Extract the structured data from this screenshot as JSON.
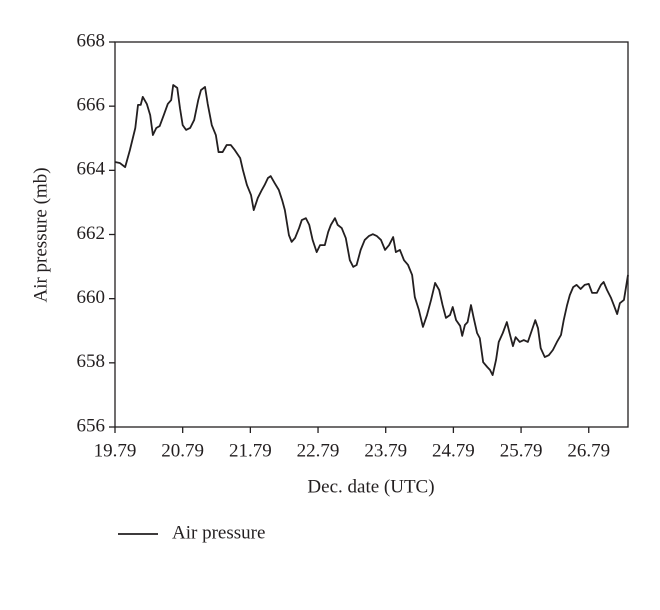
{
  "chart_data": {
    "type": "line",
    "x_label": "Dec. date (UTC)",
    "y_label": "Air pressure (mb)",
    "xlim": [
      19.79,
      27.37
    ],
    "ylim": [
      656,
      668
    ],
    "xticks": [
      19.79,
      20.79,
      21.79,
      22.79,
      23.79,
      24.79,
      25.79,
      26.79
    ],
    "yticks": [
      656,
      658,
      660,
      662,
      664,
      666,
      668
    ],
    "legend": "bottom-left",
    "x": [
      19.79,
      19.86,
      19.94,
      20.01,
      20.09,
      20.13,
      20.17,
      20.2,
      20.26,
      20.31,
      20.35,
      20.4,
      20.45,
      20.51,
      20.57,
      20.62,
      20.65,
      20.71,
      20.75,
      20.79,
      20.84,
      20.9,
      20.96,
      21.02,
      21.06,
      21.12,
      21.16,
      21.22,
      21.28,
      21.32,
      21.38,
      21.44,
      21.5,
      21.56,
      21.64,
      21.68,
      21.74,
      21.8,
      21.84,
      21.9,
      21.96,
      22.0,
      22.05,
      22.09,
      22.15,
      22.21,
      22.26,
      22.3,
      22.36,
      22.4,
      22.45,
      22.51,
      22.55,
      22.61,
      22.66,
      22.71,
      22.77,
      22.82,
      22.89,
      22.94,
      22.98,
      23.04,
      23.08,
      23.14,
      23.2,
      23.26,
      23.31,
      23.36,
      23.42,
      23.48,
      23.54,
      23.6,
      23.66,
      23.72,
      23.78,
      23.84,
      23.9,
      23.94,
      24.0,
      24.06,
      24.12,
      24.18,
      24.22,
      24.28,
      24.34,
      24.4,
      24.46,
      24.52,
      24.58,
      24.63,
      24.68,
      24.74,
      24.78,
      24.83,
      24.89,
      24.92,
      24.96,
      25.0,
      25.05,
      25.09,
      25.14,
      25.18,
      25.23,
      25.29,
      25.33,
      25.37,
      25.42,
      25.46,
      25.52,
      25.58,
      25.62,
      25.67,
      25.71,
      25.77,
      25.83,
      25.89,
      25.95,
      26.0,
      26.04,
      26.08,
      26.14,
      26.2,
      26.26,
      26.32,
      26.38,
      26.42,
      26.47,
      26.51,
      26.56,
      26.61,
      26.67,
      26.73,
      26.79,
      26.84,
      26.91,
      26.97,
      27.01,
      27.06,
      27.12,
      27.16,
      27.21,
      27.25,
      27.31,
      27.37
    ],
    "series": [
      {
        "name": "Air pressure",
        "color": "#231f20",
        "values": [
          664.26,
          664.23,
          664.1,
          664.63,
          665.32,
          666.04,
          666.04,
          666.29,
          666.07,
          665.72,
          665.1,
          665.32,
          665.38,
          665.72,
          666.07,
          666.19,
          666.66,
          666.57,
          665.94,
          665.41,
          665.26,
          665.32,
          665.57,
          666.19,
          666.5,
          666.6,
          666.07,
          665.41,
          665.1,
          664.57,
          664.57,
          664.79,
          664.79,
          664.63,
          664.38,
          664.01,
          663.54,
          663.23,
          662.76,
          663.14,
          663.39,
          663.54,
          663.76,
          663.82,
          663.6,
          663.39,
          663.07,
          662.76,
          661.98,
          661.77,
          661.89,
          662.2,
          662.45,
          662.51,
          662.3,
          661.83,
          661.45,
          661.67,
          661.67,
          662.08,
          662.3,
          662.51,
          662.3,
          662.2,
          661.89,
          661.2,
          660.99,
          661.05,
          661.52,
          661.83,
          661.95,
          662.01,
          661.95,
          661.83,
          661.52,
          661.67,
          661.92,
          661.45,
          661.52,
          661.2,
          661.05,
          660.74,
          660.05,
          659.65,
          659.12,
          659.49,
          659.96,
          660.49,
          660.27,
          659.8,
          659.4,
          659.49,
          659.74,
          659.33,
          659.15,
          658.84,
          659.18,
          659.27,
          659.8,
          659.4,
          658.93,
          658.77,
          658.02,
          657.87,
          657.78,
          657.62,
          658.09,
          658.65,
          658.93,
          659.27,
          658.93,
          658.52,
          658.8,
          658.65,
          658.71,
          658.65,
          659.02,
          659.33,
          659.08,
          658.46,
          658.18,
          658.24,
          658.4,
          658.65,
          658.87,
          659.33,
          659.8,
          660.11,
          660.36,
          660.43,
          660.3,
          660.43,
          660.46,
          660.18,
          660.18,
          660.43,
          660.52,
          660.27,
          660.02,
          659.8,
          659.52,
          659.86,
          659.96,
          660.74
        ]
      }
    ]
  }
}
